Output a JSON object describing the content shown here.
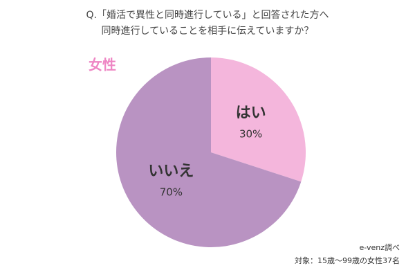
{
  "chart_data": {
    "type": "pie",
    "title": [
      "Q.「婚活で異性と同時進行している」と回答された方へ",
      "同時進行していることを相手に伝えていますか？"
    ],
    "subtitle": "女性",
    "categories": [
      "はい",
      "いいえ"
    ],
    "values": [
      30,
      70
    ],
    "value_labels": [
      "30%",
      "70%"
    ],
    "colors": [
      "#f4b6dc",
      "#b993c2"
    ],
    "notes": [
      "e-venz調べ",
      "対象：15歳〜99歳の女性37名"
    ]
  }
}
